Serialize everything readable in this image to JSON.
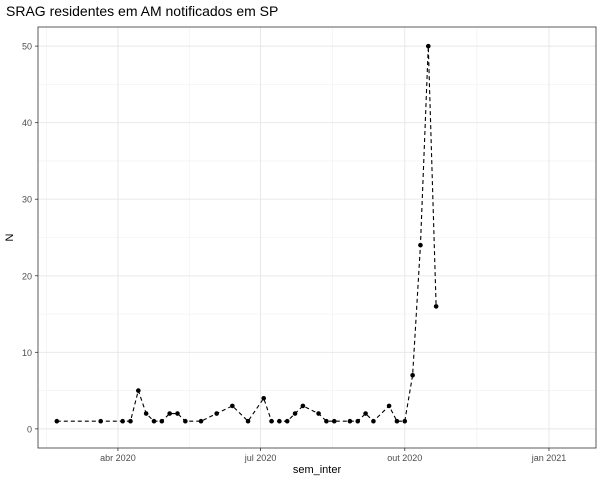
{
  "chart_data": {
    "type": "line",
    "title": "SRAG residentes em AM notificados em SP",
    "xlabel": "sem_inter",
    "ylabel": "N",
    "x_axis_type": "date",
    "xlim": [
      "2020-02-10",
      "2021-01-31"
    ],
    "ylim": [
      -2.5,
      52.5
    ],
    "x_ticks": [
      {
        "date": "2020-04-01",
        "label": "abr 2020"
      },
      {
        "date": "2020-07-01",
        "label": "jul 2020"
      },
      {
        "date": "2020-10-01",
        "label": "out 2020"
      },
      {
        "date": "2021-01-01",
        "label": "jan 2021"
      }
    ],
    "y_ticks": [
      0,
      10,
      20,
      30,
      40,
      50
    ],
    "grid": true,
    "legend": "none",
    "line_style": "dashed",
    "marker": "filled-circle",
    "series": [
      {
        "color": "#000000",
        "points": [
          {
            "x": "2020-02-22",
            "y": 1
          },
          {
            "x": "2020-03-21",
            "y": 1
          },
          {
            "x": "2020-04-04",
            "y": 1
          },
          {
            "x": "2020-04-09",
            "y": 1
          },
          {
            "x": "2020-04-14",
            "y": 5
          },
          {
            "x": "2020-04-19",
            "y": 2
          },
          {
            "x": "2020-04-24",
            "y": 1
          },
          {
            "x": "2020-04-29",
            "y": 1
          },
          {
            "x": "2020-05-04",
            "y": 2
          },
          {
            "x": "2020-05-09",
            "y": 2
          },
          {
            "x": "2020-05-14",
            "y": 1
          },
          {
            "x": "2020-05-24",
            "y": 1
          },
          {
            "x": "2020-06-03",
            "y": 2
          },
          {
            "x": "2020-06-13",
            "y": 3
          },
          {
            "x": "2020-06-23",
            "y": 1
          },
          {
            "x": "2020-07-03",
            "y": 4
          },
          {
            "x": "2020-07-08",
            "y": 1
          },
          {
            "x": "2020-07-13",
            "y": 1
          },
          {
            "x": "2020-07-18",
            "y": 1
          },
          {
            "x": "2020-07-23",
            "y": 2
          },
          {
            "x": "2020-07-28",
            "y": 3
          },
          {
            "x": "2020-08-07",
            "y": 2
          },
          {
            "x": "2020-08-12",
            "y": 1
          },
          {
            "x": "2020-08-17",
            "y": 1
          },
          {
            "x": "2020-08-27",
            "y": 1
          },
          {
            "x": "2020-09-01",
            "y": 1
          },
          {
            "x": "2020-09-06",
            "y": 2
          },
          {
            "x": "2020-09-11",
            "y": 1
          },
          {
            "x": "2020-09-21",
            "y": 3
          },
          {
            "x": "2020-09-26",
            "y": 1
          },
          {
            "x": "2020-10-01",
            "y": 1
          },
          {
            "x": "2020-10-06",
            "y": 7
          },
          {
            "x": "2020-10-11",
            "y": 24
          },
          {
            "x": "2020-10-16",
            "y": 50
          },
          {
            "x": "2020-10-21",
            "y": 16
          }
        ]
      }
    ]
  }
}
